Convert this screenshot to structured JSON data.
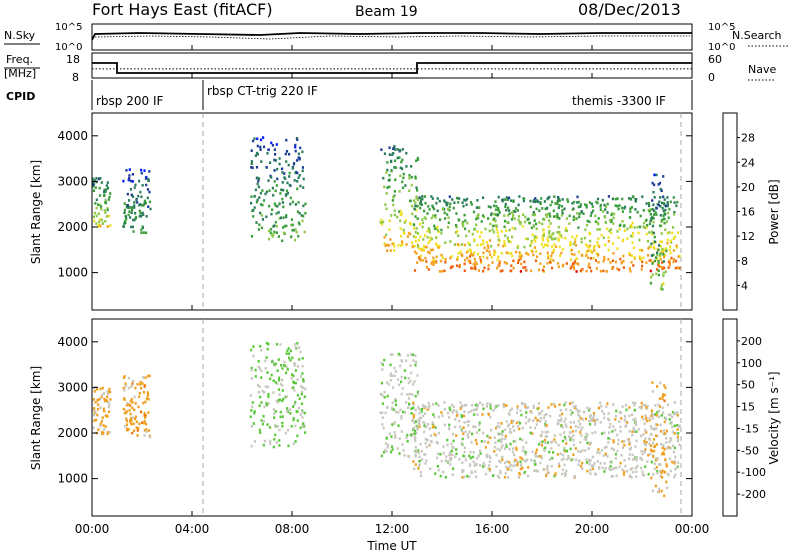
{
  "header": {
    "title": "Fort Hays East (fitACF)",
    "beam": "Beam 19",
    "date": "08/Dec/2013"
  },
  "top_panels": {
    "nsky_label": "N.Sky",
    "nsky_ticks": [
      "10^5",
      "10^0"
    ],
    "nsearch_label": "N.Search",
    "nsearch_ticks": [
      "10^5",
      "10^0"
    ],
    "freq_label": "Freq.",
    "freq_unit": "[MHz]",
    "freq_ticks": [
      "18",
      "8"
    ],
    "nave_label": "Nave",
    "nave_ticks": [
      "60",
      "0"
    ],
    "cpid_label": "CPID",
    "cpid_segments": [
      {
        "label": "rbsp 200 IF",
        "start": 0,
        "end": 4.7
      },
      {
        "label": "rbsp CT-trig 220 IF",
        "start": 4.7,
        "end": 24
      },
      {
        "label": "themis -3300 IF",
        "start": 24,
        "end": 24
      }
    ],
    "freq_series": [
      {
        "t": 0,
        "f": 14
      },
      {
        "t": 1.0,
        "f": 14
      },
      {
        "t": 1.0,
        "f": 10
      },
      {
        "t": 13.0,
        "f": 10
      },
      {
        "t": 13.0,
        "f": 14
      },
      {
        "t": 24,
        "f": 14
      }
    ],
    "nave_level": 22
  },
  "x_axis": {
    "label": "Time UT",
    "range": [
      0,
      24
    ],
    "ticks": [
      {
        "v": 0,
        "label": "00:00"
      },
      {
        "v": 4,
        "label": "04:00"
      },
      {
        "v": 8,
        "label": "08:00"
      },
      {
        "v": 12,
        "label": "12:00"
      },
      {
        "v": 16,
        "label": "16:00"
      },
      {
        "v": 20,
        "label": "20:00"
      },
      {
        "v": 24,
        "label": "00:00"
      }
    ]
  },
  "chart_data": [
    {
      "type": "heatmap",
      "name": "power",
      "ylabel": "Slant Range [km]",
      "ylim": [
        180,
        4500
      ],
      "yticks": [
        1000,
        2000,
        3000,
        4000
      ],
      "colorbar": {
        "label": "Power [dB]",
        "range": [
          0,
          32
        ],
        "ticks": [
          4,
          8,
          12,
          16,
          20,
          24,
          28
        ],
        "colors": [
          "#0018ff",
          "#1e3c96",
          "#2b7c5a",
          "#3a9e3a",
          "#8ec84a",
          "#f0e020",
          "#f4a020",
          "#f06010",
          "#e00000"
        ]
      },
      "regions": [
        {
          "t0": 0.0,
          "t1": 0.7,
          "r0": 2000,
          "r1": 3100,
          "peak": 20
        },
        {
          "t0": 1.2,
          "t1": 2.3,
          "r0": 1900,
          "r1": 3300,
          "peak": 12
        },
        {
          "t0": 6.3,
          "t1": 8.5,
          "r0": 1700,
          "r1": 4000,
          "peak": 14
        },
        {
          "t0": 11.5,
          "t1": 13.0,
          "r0": 1500,
          "r1": 3800,
          "peak": 22
        },
        {
          "t0": 12.8,
          "t1": 23.5,
          "r0": 1050,
          "r1": 2700,
          "peak": 26
        },
        {
          "t0": 22.3,
          "t1": 23.0,
          "r0": 600,
          "r1": 3200,
          "peak": 16
        }
      ]
    },
    {
      "type": "heatmap",
      "name": "velocity",
      "ylabel": "Slant Range [km]",
      "ylim": [
        180,
        4500
      ],
      "yticks": [
        1000,
        2000,
        3000,
        4000
      ],
      "colorbar": {
        "label": "Velocity [m s⁻¹]",
        "tick_labels": [
          "200",
          "100",
          "50",
          "15",
          "-15",
          "-50",
          "-100",
          "-200"
        ],
        "colors": [
          "#1010c0",
          "#2060a0",
          "#2a7a4a",
          "#5ac83a",
          "#c8c8c0",
          "#f0a020",
          "#f07010",
          "#e02000",
          "#d00000"
        ]
      },
      "regions": [
        {
          "t0": 0.0,
          "t1": 0.7,
          "r0": 2000,
          "r1": 3100,
          "v": -30
        },
        {
          "t0": 1.2,
          "t1": 2.3,
          "r0": 1900,
          "r1": 3300,
          "v": -40
        },
        {
          "t0": 6.3,
          "t1": 8.5,
          "r0": 1700,
          "r1": 4000,
          "v": 30
        },
        {
          "t0": 11.5,
          "t1": 13.0,
          "r0": 1500,
          "r1": 3800,
          "v": 10
        },
        {
          "t0": 12.8,
          "t1": 23.5,
          "r0": 1050,
          "r1": 2700,
          "v": 0
        },
        {
          "t0": 22.3,
          "t1": 23.0,
          "r0": 600,
          "r1": 3200,
          "v": -40
        }
      ]
    }
  ]
}
